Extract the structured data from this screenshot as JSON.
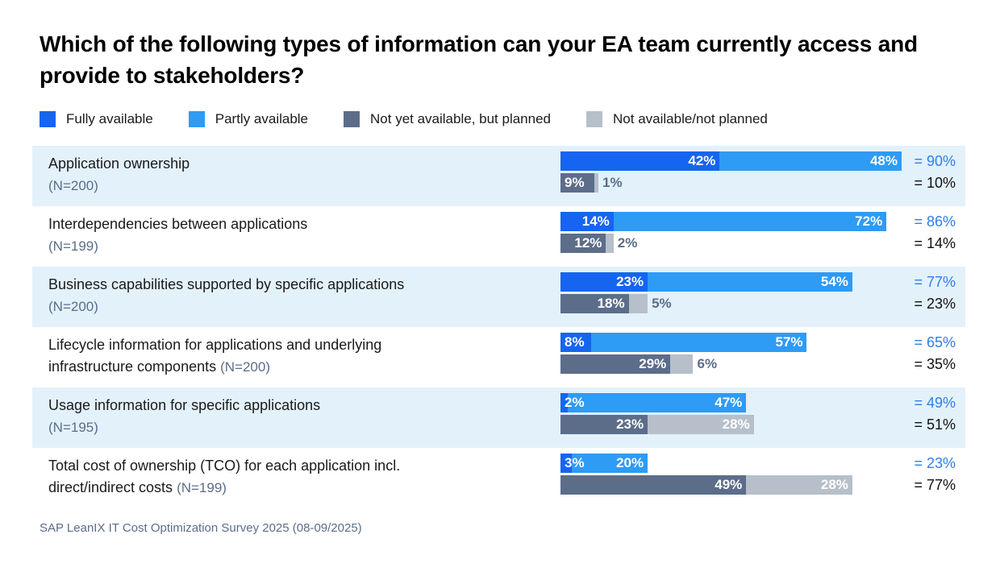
{
  "title": "Which of the following types of information can your EA team currently access and provide to stakeholders?",
  "footer": "SAP LeanIX IT Cost Optimization Survey 2025 (08-09/2025)",
  "colors": {
    "fully_available": "#1565f0",
    "partly_available": "#2e9bf5",
    "planned": "#5c6d8a",
    "not_planned": "#b6bfca",
    "row_stripe": "#e3f1fb",
    "total_available_text": "#2e7ee8",
    "total_unavailable_text": "#111111",
    "muted_text": "#5c6d8a"
  },
  "legend": [
    {
      "key": "fully-available",
      "label": "Fully available",
      "color": "#1565f0"
    },
    {
      "key": "partly-available",
      "label": "Partly available",
      "color": "#2e9bf5"
    },
    {
      "key": "planned",
      "label": "Not yet available, but planned",
      "color": "#5c6d8a"
    },
    {
      "key": "not-planned",
      "label": "Not available/not planned",
      "color": "#b6bfca"
    }
  ],
  "rows": [
    {
      "label_line1": "Application ownership",
      "label_line2": "",
      "n_label": "(N=200)",
      "n_inline": false,
      "striped": true,
      "top_segments": [
        {
          "pct": 42,
          "label": "42%",
          "series": "fully-available",
          "label_inside": true
        },
        {
          "pct": 48,
          "label": "48%",
          "series": "partly-available",
          "label_inside": true
        }
      ],
      "bottom_segments": [
        {
          "pct": 9,
          "label": "9%",
          "series": "planned",
          "label_inside": true
        },
        {
          "pct": 1,
          "label": "1%",
          "series": "not-planned",
          "label_inside": false
        }
      ],
      "total_top": "= 90%",
      "total_bottom": "= 10%"
    },
    {
      "label_line1": "Interdependencies between applications",
      "label_line2": "",
      "n_label": "(N=199)",
      "n_inline": false,
      "striped": false,
      "top_segments": [
        {
          "pct": 14,
          "label": "14%",
          "series": "fully-available",
          "label_inside": true
        },
        {
          "pct": 72,
          "label": "72%",
          "series": "partly-available",
          "label_inside": true
        }
      ],
      "bottom_segments": [
        {
          "pct": 12,
          "label": "12%",
          "series": "planned",
          "label_inside": true
        },
        {
          "pct": 2,
          "label": "2%",
          "series": "not-planned",
          "label_inside": false
        }
      ],
      "total_top": "= 86%",
      "total_bottom": "= 14%"
    },
    {
      "label_line1": "Business capabilities supported by specific applications",
      "label_line2": "",
      "n_label": "(N=200)",
      "n_inline": false,
      "striped": true,
      "top_segments": [
        {
          "pct": 23,
          "label": "23%",
          "series": "fully-available",
          "label_inside": true
        },
        {
          "pct": 54,
          "label": "54%",
          "series": "partly-available",
          "label_inside": true
        }
      ],
      "bottom_segments": [
        {
          "pct": 18,
          "label": "18%",
          "series": "planned",
          "label_inside": true
        },
        {
          "pct": 5,
          "label": "5%",
          "series": "not-planned",
          "label_inside": false
        }
      ],
      "total_top": "= 77%",
      "total_bottom": "= 23%"
    },
    {
      "label_line1": "Lifecycle information for applications and underlying",
      "label_line2": "infrastructure components",
      "n_label": "(N=200)",
      "n_inline": true,
      "striped": false,
      "top_segments": [
        {
          "pct": 8,
          "label": "8%",
          "series": "fully-available",
          "label_inside": true
        },
        {
          "pct": 57,
          "label": "57%",
          "series": "partly-available",
          "label_inside": true
        }
      ],
      "bottom_segments": [
        {
          "pct": 29,
          "label": "29%",
          "series": "planned",
          "label_inside": true
        },
        {
          "pct": 6,
          "label": "6%",
          "series": "not-planned",
          "label_inside": false
        }
      ],
      "total_top": "= 65%",
      "total_bottom": "= 35%"
    },
    {
      "label_line1": "Usage information for specific applications",
      "label_line2": "",
      "n_label": "(N=195)",
      "n_inline": false,
      "striped": true,
      "top_segments": [
        {
          "pct": 2,
          "label": "2%",
          "series": "fully-available",
          "label_inside": true
        },
        {
          "pct": 47,
          "label": "47%",
          "series": "partly-available",
          "label_inside": true
        }
      ],
      "bottom_segments": [
        {
          "pct": 23,
          "label": "23%",
          "series": "planned",
          "label_inside": true
        },
        {
          "pct": 28,
          "label": "28%",
          "series": "not-planned",
          "label_inside": true
        }
      ],
      "total_top": "= 49%",
      "total_bottom": "= 51%"
    },
    {
      "label_line1": "Total cost of ownership (TCO) for each application incl.",
      "label_line2": "direct/indirect costs",
      "n_label": "(N=199)",
      "n_inline": true,
      "striped": false,
      "top_segments": [
        {
          "pct": 3,
          "label": "3%",
          "series": "fully-available",
          "label_inside": true
        },
        {
          "pct": 20,
          "label": "20%",
          "series": "partly-available",
          "label_inside": true
        }
      ],
      "bottom_segments": [
        {
          "pct": 49,
          "label": "49%",
          "series": "planned",
          "label_inside": true
        },
        {
          "pct": 28,
          "label": "28%",
          "series": "not-planned",
          "label_inside": true
        }
      ],
      "total_top": "= 23%",
      "total_bottom": "= 77%"
    }
  ],
  "chart_data": {
    "type": "bar",
    "orientation": "horizontal-stacked",
    "title": "Which of the following types of information can your EA team currently access and provide to stakeholders?",
    "categories": [
      "Application ownership",
      "Interdependencies between applications",
      "Business capabilities supported by specific applications",
      "Lifecycle information for applications and underlying infrastructure components",
      "Usage information for specific applications",
      "Total cost of ownership (TCO) for each application incl. direct/indirect costs"
    ],
    "sample_sizes": [
      200,
      199,
      200,
      200,
      195,
      199
    ],
    "series": [
      {
        "name": "Fully available",
        "values": [
          42,
          14,
          23,
          8,
          2,
          3
        ]
      },
      {
        "name": "Partly available",
        "values": [
          48,
          72,
          54,
          57,
          47,
          20
        ]
      },
      {
        "name": "Not yet available, but planned",
        "values": [
          9,
          12,
          18,
          29,
          23,
          49
        ]
      },
      {
        "name": "Not available/not planned",
        "values": [
          1,
          2,
          5,
          6,
          28,
          28
        ]
      }
    ],
    "available_totals": [
      90,
      86,
      77,
      65,
      49,
      23
    ],
    "unavailable_totals": [
      10,
      14,
      23,
      35,
      51,
      77
    ],
    "xlim": [
      0,
      100
    ],
    "unit": "%",
    "legend_position": "top",
    "grid": false,
    "source": "SAP LeanIX IT Cost Optimization Survey 2025 (08-09/2025)"
  }
}
